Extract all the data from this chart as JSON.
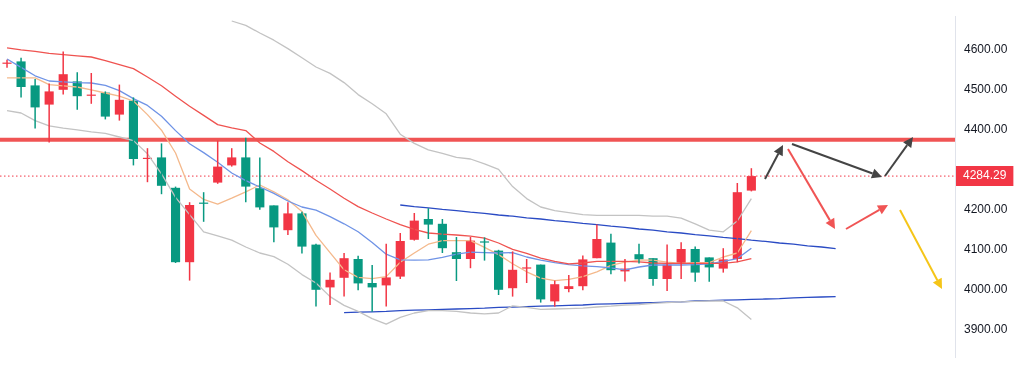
{
  "chart_data": {
    "type": "candlestick",
    "categories": [
      null,
      null,
      null,
      null,
      null,
      null,
      null,
      null,
      null,
      null,
      null,
      null,
      null,
      null,
      null,
      null,
      null,
      null,
      null,
      null,
      null,
      null,
      null,
      null,
      null,
      null,
      null,
      null,
      null,
      null,
      null,
      null,
      null,
      null,
      null,
      null,
      null,
      null,
      null,
      null,
      null,
      null,
      null,
      null,
      null,
      null,
      null,
      null,
      null,
      null,
      null,
      null,
      null,
      null,
      null,
      null,
      null,
      null,
      null,
      null,
      null,
      null,
      null,
      null,
      null,
      null,
      null,
      null
    ],
    "ohlc": [
      [
        4568,
        4575,
        4555,
        4565
      ],
      [
        4571,
        4580,
        4481,
        4507
      ],
      [
        4511,
        4527,
        4403,
        4456
      ],
      [
        4463,
        4516,
        4368,
        4496
      ],
      [
        4500,
        4596,
        4488,
        4539
      ],
      [
        4521,
        4544,
        4450,
        4484
      ],
      [
        4488,
        4542,
        4465,
        4485
      ],
      [
        4493,
        4496,
        4426,
        4433
      ],
      [
        4438,
        4513,
        4423,
        4475
      ],
      [
        4473,
        4481,
        4311,
        4327
      ],
      [
        4327,
        4354,
        4269,
        4330
      ],
      [
        4331,
        4366,
        4239,
        4260
      ],
      [
        4255,
        4258,
        4067,
        4069
      ],
      [
        4069,
        4219,
        4023,
        4212
      ],
      [
        4218,
        4244,
        4170,
        4215
      ],
      [
        4268,
        4373,
        4265,
        4308
      ],
      [
        4311,
        4354,
        4308,
        4331
      ],
      [
        4331,
        4380,
        4219,
        4258
      ],
      [
        4254,
        4331,
        4200,
        4206
      ],
      [
        4211,
        4211,
        4119,
        4156
      ],
      [
        4149,
        4219,
        4137,
        4191
      ],
      [
        4191,
        4195,
        4091,
        4108
      ],
      [
        4113,
        4115,
        3958,
        4000
      ],
      [
        4006,
        4043,
        3962,
        4025
      ],
      [
        4030,
        4092,
        3983,
        4079
      ],
      [
        4077,
        4085,
        3999,
        4016
      ],
      [
        4017,
        4062,
        3945,
        4006
      ],
      [
        4011,
        4115,
        3958,
        4031
      ],
      [
        4033,
        4142,
        4027,
        4122
      ],
      [
        4125,
        4192,
        4123,
        4173
      ],
      [
        4177,
        4204,
        4127,
        4163
      ],
      [
        4165,
        4177,
        4092,
        4104
      ],
      [
        4094,
        4132,
        4022,
        4077
      ],
      [
        4077,
        4132,
        4054,
        4123
      ],
      [
        4121,
        4131,
        4073,
        4118
      ],
      [
        4098,
        4100,
        3987,
        4000
      ],
      [
        4004,
        4096,
        3983,
        4050
      ],
      [
        4056,
        4077,
        4017,
        4053
      ],
      [
        4063,
        4063,
        3968,
        3976
      ],
      [
        3971,
        4023,
        3958,
        4014
      ],
      [
        4002,
        4037,
        3994,
        4009
      ],
      [
        4009,
        4086,
        3999,
        4076
      ],
      [
        4079,
        4163,
        4079,
        4127
      ],
      [
        4118,
        4140,
        4039,
        4049
      ],
      [
        4046,
        4077,
        4021,
        4053
      ],
      [
        4089,
        4115,
        4066,
        4076
      ],
      [
        4079,
        4079,
        4010,
        4027
      ],
      [
        4027,
        4113,
        3997,
        4063
      ],
      [
        4066,
        4119,
        4027,
        4102
      ],
      [
        4102,
        4108,
        4020,
        4043
      ],
      [
        4081,
        4081,
        4020,
        4056
      ],
      [
        4053,
        4104,
        4043,
        4076
      ],
      [
        4077,
        4267,
        4069,
        4244
      ],
      [
        4248,
        4304,
        4246,
        4284.29
      ],
      null,
      null,
      null,
      null,
      null,
      null,
      null,
      null,
      null,
      null,
      null,
      null,
      null,
      null
    ],
    "colors": [
      "#f23645",
      "#089981",
      "#089981",
      "#f23645",
      "#f23645",
      "#089981",
      "#f23645",
      "#089981",
      "#f23645",
      "#089981",
      "#f23645",
      "#089981",
      "#089981",
      "#f23645",
      "#089981",
      "#f23645",
      "#f23645",
      "#089981",
      "#089981",
      "#089981",
      "#f23645",
      "#089981",
      "#089981",
      "#f23645",
      "#f23645",
      "#089981",
      "#089981",
      "#f23645",
      "#f23645",
      "#f23645",
      "#089981",
      "#089981",
      "#089981",
      "#f23645",
      "#089981",
      "#089981",
      "#f23645",
      "#f23645",
      "#089981",
      "#f23645",
      "#f23645",
      "#f23645",
      "#f23645",
      "#089981",
      "#f23645",
      "#089981",
      "#089981",
      "#f23645",
      "#f23645",
      "#089981",
      "#089981",
      "#f23645",
      "#f23645",
      "#f23645",
      null,
      null,
      null,
      null,
      null,
      null,
      null,
      null,
      null,
      null,
      null,
      null,
      null,
      null
    ],
    "series": [
      {
        "type": "line",
        "color": "#c3c3c3",
        "values": [
          null,
          null,
          null,
          null,
          null,
          null,
          null,
          null,
          null,
          null,
          null,
          null,
          null,
          null,
          null,
          null,
          4672,
          4661,
          4642,
          4624,
          4603,
          4580,
          4557,
          4541,
          4518,
          4488,
          4465,
          4440,
          4389,
          4366,
          4350,
          4341,
          4331,
          4327,
          4315,
          4301,
          4258,
          4228,
          4207,
          4198,
          4193,
          4188,
          4186,
          4186,
          4186,
          4186,
          4184,
          4184,
          4179,
          4165,
          4149,
          4145,
          4172,
          4228,
          null,
          null,
          null,
          null,
          null,
          null,
          null,
          null,
          null,
          null,
          null,
          null,
          null,
          null
        ]
      },
      {
        "type": "line",
        "color": "#c3c3c3",
        "values": [
          4448,
          4442,
          4423,
          4410,
          4404,
          4400,
          4395,
          4391,
          4382,
          4373,
          4340,
          4290,
          4231,
          4188,
          4145,
          4135,
          4124,
          4107,
          4092,
          4083,
          4064,
          4038,
          4017,
          3983,
          3961,
          3946,
          3928,
          3914,
          3931,
          3942,
          3948,
          3948,
          3946,
          3942,
          3940,
          3942,
          3960,
          3956,
          3951,
          3952,
          3953,
          3954,
          3957,
          3959,
          3962,
          3963,
          3966,
          3968,
          3970,
          3971,
          3972,
          3972,
          3955,
          3926,
          null,
          null,
          null,
          null,
          null,
          null,
          null,
          null,
          null,
          null,
          null,
          null,
          null,
          null
        ]
      },
      {
        "type": "line",
        "color": "#ef5350",
        "values": [
          4605,
          4600,
          4596,
          4591,
          4588,
          4585,
          4582,
          4573,
          4563,
          4553,
          4532,
          4510,
          4484,
          4459,
          4436,
          4413,
          4405,
          4398,
          4367,
          4346,
          4320,
          4298,
          4274,
          4252,
          4229,
          4208,
          4192,
          4177,
          4163,
          4151,
          4142,
          4139,
          4137,
          4134,
          4129,
          4117,
          4101,
          4091,
          4079,
          4071,
          4065,
          4067,
          4071,
          4071,
          4071,
          4070,
          4067,
          4066,
          4066,
          4066,
          4066,
          4066,
          4070,
          4078,
          null,
          null,
          null,
          null,
          null,
          null,
          null,
          null,
          null,
          null,
          null,
          null,
          null,
          null
        ]
      },
      {
        "type": "line",
        "color": "#6f93e6",
        "values": [
          4577,
          4556,
          4535,
          4522,
          4520,
          4518,
          4517,
          4511,
          4498,
          4478,
          4461,
          4434,
          4398,
          4365,
          4343,
          4319,
          4292,
          4273,
          4257,
          4241,
          4222,
          4207,
          4199,
          4183,
          4165,
          4145,
          4118,
          4089,
          4075,
          4074,
          4075,
          4081,
          4089,
          4094,
          4093,
          4092,
          4093,
          4082,
          4074,
          4068,
          4063,
          4060,
          4058,
          4055,
          4050,
          4057,
          4062,
          4062,
          4062,
          4063,
          4065,
          4071,
          4078,
          4104,
          null,
          null,
          null,
          null,
          null,
          null,
          null,
          null,
          null,
          null,
          null,
          null,
          null,
          null
        ]
      },
      {
        "type": "line",
        "color": "#f4b98c",
        "values": [
          4530,
          4530,
          4530,
          4513,
          4510,
          4507,
          4500,
          4492,
          4484,
          4472,
          4438,
          4399,
          4342,
          4252,
          4226,
          4214,
          4229,
          4245,
          4262,
          4245,
          4225,
          4196,
          4136,
          4093,
          4050,
          4031,
          4028,
          4033,
          4069,
          4092,
          4114,
          4123,
          4123,
          4123,
          4106,
          4088,
          4065,
          4045,
          4029,
          4023,
          4026,
          4033,
          4045,
          4061,
          4069,
          4074,
          4074,
          4069,
          4066,
          4068,
          4068,
          4082,
          4092,
          4148,
          null,
          null,
          null,
          null,
          null,
          null,
          null,
          null,
          null,
          null,
          null,
          null,
          null,
          null
        ]
      },
      {
        "type": "line",
        "color": "#2a4bc4",
        "values": [
          null,
          null,
          null,
          null,
          null,
          null,
          null,
          null,
          null,
          null,
          null,
          null,
          null,
          null,
          null,
          null,
          null,
          null,
          null,
          null,
          null,
          null,
          null,
          null,
          null,
          null,
          null,
          null,
          4212,
          4208,
          4205,
          4201,
          4198,
          4194,
          4191,
          4187,
          4184,
          4180,
          4177,
          4173,
          4170,
          4166,
          4163,
          4159,
          4156,
          4152,
          4149,
          4145,
          4142,
          4138,
          4135,
          4131,
          4128,
          4124,
          4121,
          4117,
          4114,
          4110,
          4107,
          4103,
          null,
          null,
          null,
          null,
          null,
          null,
          null,
          null
        ]
      },
      {
        "type": "line",
        "color": "#2a4bc4",
        "values": [
          null,
          null,
          null,
          null,
          null,
          null,
          null,
          null,
          null,
          null,
          null,
          null,
          null,
          null,
          null,
          null,
          null,
          null,
          null,
          null,
          null,
          null,
          null,
          null,
          3943,
          3944,
          3945,
          3946,
          3948,
          3949,
          3950,
          3951,
          3952,
          3953,
          3954,
          3956,
          3957,
          3958,
          3959,
          3960,
          3961,
          3962,
          3964,
          3965,
          3966,
          3967,
          3968,
          3969,
          3970,
          3972,
          3973,
          3974,
          3975,
          3976,
          3977,
          3978,
          3980,
          3981,
          3982,
          3983,
          null,
          null,
          null,
          null,
          null,
          null,
          null,
          null
        ]
      }
    ],
    "ylim": [
      3830,
      4684
    ],
    "yticks": [
      {
        "value": 3900,
        "label": "3900.00"
      },
      {
        "value": 4000,
        "label": "4000.00"
      },
      {
        "value": 4100,
        "label": "4100.00"
      },
      {
        "value": 4200,
        "label": "4200.00"
      },
      {
        "value": 4400,
        "label": "4400.00"
      },
      {
        "value": 4500,
        "label": "4500.00"
      },
      {
        "value": 4600,
        "label": "4600.00"
      }
    ],
    "ref_lines": [
      {
        "axis": "y",
        "value": 4375,
        "color": "#f05454",
        "line_style": "solid"
      },
      {
        "axis": "y",
        "value": 4284.29,
        "label": "4284.29",
        "color": "#f23645",
        "line_style": "dotted"
      }
    ],
    "grid": false,
    "legend": false,
    "tick_labels": "y"
  }
}
